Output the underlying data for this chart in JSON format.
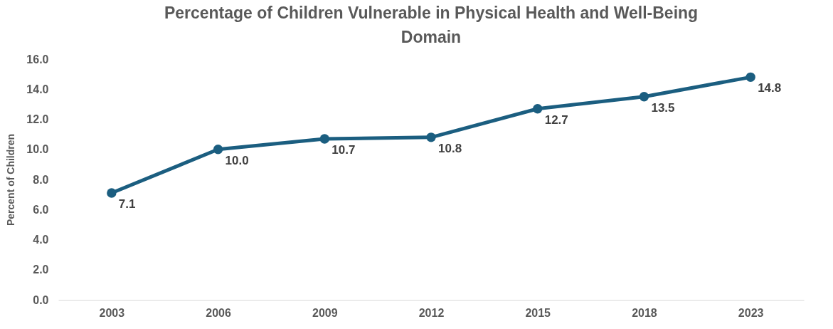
{
  "chart_data": {
    "type": "line",
    "title": "Percentage of Children Vulnerable in Physical Health and Well-Being Domain",
    "ylabel": "Percent of Children",
    "categories": [
      "2003",
      "2006",
      "2009",
      "2012",
      "2015",
      "2018",
      "2023"
    ],
    "series": [
      {
        "color": "#1b5e80",
        "values": [
          7.1,
          10.0,
          10.7,
          10.8,
          12.7,
          13.5,
          14.8
        ],
        "value_labels": [
          "7.1",
          "10.0",
          "10.7",
          "10.8",
          "12.7",
          "13.5",
          "14.8"
        ]
      }
    ],
    "ylim": [
      0,
      16
    ],
    "yticks": [
      {
        "value": 0,
        "label": "0.0"
      },
      {
        "value": 2,
        "label": "2.0"
      },
      {
        "value": 4,
        "label": "4.0"
      },
      {
        "value": 6,
        "label": "6.0"
      },
      {
        "value": 8,
        "label": "8.0"
      },
      {
        "value": 10,
        "label": "10.0"
      },
      {
        "value": 12,
        "label": "12.0"
      },
      {
        "value": 14,
        "label": "14.0"
      },
      {
        "value": 16,
        "label": "16.0"
      }
    ],
    "grid": false,
    "marker": "circle",
    "line_style": "solid"
  }
}
